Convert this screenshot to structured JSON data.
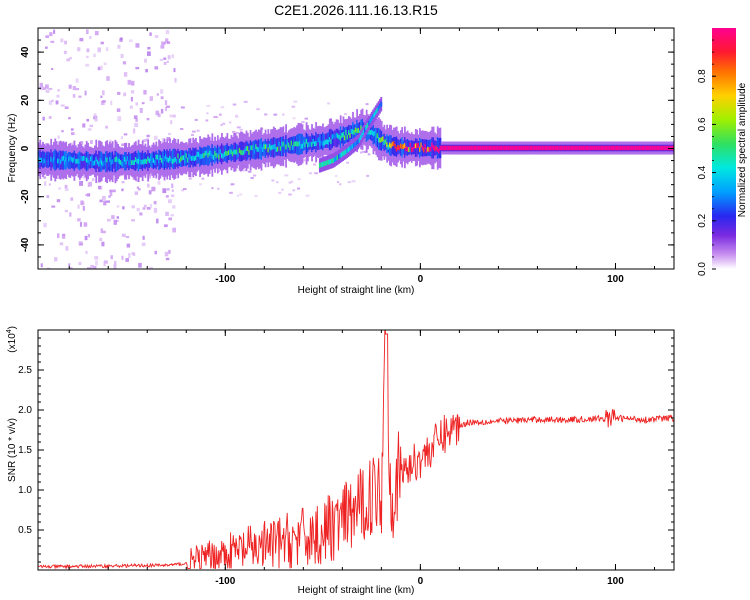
{
  "chart_data": [
    {
      "type": "heatmap",
      "title": "C2E1.2026.111.16.13.R15",
      "xlabel": "Height of straight line (km)",
      "ylabel": "Frequency (Hz)",
      "xlim": [
        -196,
        130
      ],
      "ylim": [
        -50,
        50
      ],
      "x_ticks": [
        -100,
        0,
        100
      ],
      "y_ticks": [
        -40,
        -20,
        0,
        20,
        40
      ],
      "colorbar": {
        "label": "Normalized spectral amplitude",
        "range": [
          0,
          1
        ],
        "ticks": [
          "0.0",
          "0.2",
          "0.4",
          "0.6",
          "0.8"
        ],
        "colormap": [
          "#ffffff",
          "#c890f0",
          "#7a2ae0",
          "#2828f0",
          "#00a0ff",
          "#00e8e0",
          "#30e060",
          "#a0f000",
          "#ffd000",
          "#ff7000",
          "#ff1a30",
          "#ff0090"
        ]
      },
      "main_trace": {
        "x": [
          -196,
          -180,
          -160,
          -140,
          -120,
          -100,
          -80,
          -60,
          -50,
          -40,
          -35,
          -30,
          -25,
          -20,
          -15,
          -10,
          0,
          10,
          20,
          60,
          100,
          130
        ],
        "freq": [
          -4.5,
          -5,
          -5.5,
          -5,
          -4,
          -2,
          0,
          2,
          3,
          5,
          7,
          8,
          6,
          3,
          1,
          0.5,
          0.3,
          0.2,
          0.2,
          0.2,
          0.2,
          0.2
        ],
        "amplitude": [
          0.35,
          0.4,
          0.42,
          0.45,
          0.48,
          0.5,
          0.5,
          0.45,
          0.4,
          0.5,
          0.55,
          0.5,
          0.45,
          0.55,
          0.75,
          0.85,
          0.95,
          1.0,
          1.0,
          1.0,
          1.0,
          1.0
        ]
      },
      "branch_trace": {
        "x": [
          -52,
          -45,
          -38,
          -32,
          -28,
          -24,
          -20
        ],
        "freq": [
          -7,
          -5,
          -1,
          3,
          9,
          14,
          19
        ]
      }
    },
    {
      "type": "line",
      "xlabel": "Height of straight line (km)",
      "ylabel": "SNR (10 * v/v)",
      "scale_note": "(x10",
      "scale_exp": "4",
      "color": "#ee2222",
      "xlim": [
        -196,
        130
      ],
      "ylim": [
        0,
        3.0
      ],
      "x_ticks": [
        -100,
        0,
        100
      ],
      "y_ticks": [
        "0.5",
        "1.0",
        "1.5",
        "2.0",
        "2.5"
      ],
      "envelope": {
        "x": [
          -196,
          -160,
          -130,
          -120,
          -100,
          -80,
          -70,
          -60,
          -50,
          -45,
          -40,
          -35,
          -30,
          -25,
          -20,
          -18,
          -16,
          -14,
          -10,
          -5,
          0,
          5,
          10,
          15,
          20,
          25,
          30,
          40,
          50,
          60,
          80,
          100,
          115,
          130
        ],
        "y": [
          0.04,
          0.05,
          0.06,
          0.08,
          0.2,
          0.3,
          0.35,
          0.4,
          0.45,
          0.55,
          0.6,
          0.7,
          0.8,
          0.95,
          1.0,
          2.9,
          1.2,
          1.0,
          1.2,
          1.3,
          1.4,
          1.5,
          1.65,
          1.75,
          1.8,
          1.85,
          1.85,
          1.86,
          1.87,
          1.88,
          1.88,
          1.9,
          1.88,
          1.9
        ]
      }
    }
  ]
}
